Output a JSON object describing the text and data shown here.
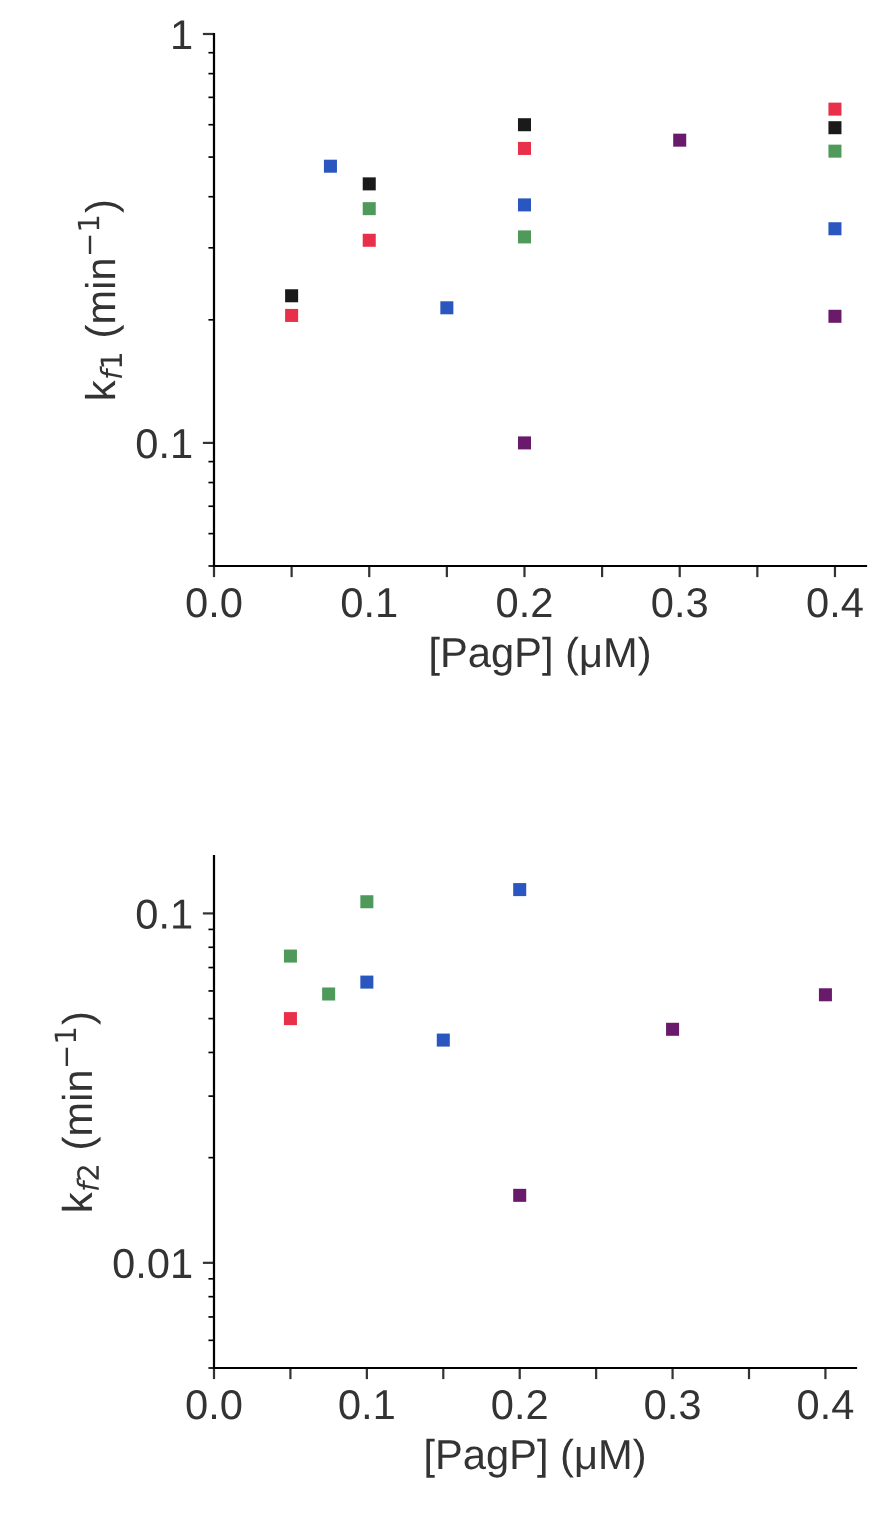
{
  "chart_data": [
    {
      "type": "scatter",
      "xlabel": "[PagP] (μM)",
      "ylabel": "k$_{f1}$ (min$^{−1}$)",
      "log": "y",
      "marker": "square",
      "xlim": [
        0,
        0.42
      ],
      "ylim": [
        0.05,
        1
      ],
      "xticks": [
        {
          "value": 0.0,
          "label": "0.0"
        },
        {
          "value": 0.05,
          "label": null
        },
        0.1,
        {
          "value": 0.15,
          "label": null
        },
        0.2,
        {
          "value": 0.25,
          "label": null
        },
        0.3,
        {
          "value": 0.35,
          "label": null
        },
        0.4
      ],
      "yticks": [
        0.1,
        1
      ],
      "series": [
        {
          "color": "#1a1a1a",
          "x": [
            0.05,
            0.1,
            0.2,
            0.4
          ],
          "values": [
            0.229,
            0.43,
            0.6,
            0.59
          ]
        },
        {
          "color": "#e8304a",
          "x": [
            0.05,
            0.1,
            0.2,
            0.4
          ],
          "values": [
            0.205,
            0.313,
            0.525,
            0.655
          ]
        },
        {
          "color": "#4f9a5a",
          "x": [
            0.1,
            0.2,
            0.4
          ],
          "values": [
            0.374,
            0.319,
            0.517
          ]
        },
        {
          "color": "#2a56c0",
          "x": [
            0.075,
            0.15,
            0.2,
            0.4
          ],
          "values": [
            0.475,
            0.214,
            0.382,
            0.334
          ]
        },
        {
          "color": "#6a1a6a",
          "x": [
            0.2,
            0.3,
            0.4
          ],
          "values": [
            0.1,
            0.55,
            0.204
          ]
        }
      ]
    },
    {
      "type": "scatter",
      "xlabel": "[PagP] (μM)",
      "ylabel": "k$_{f2}$ (min$^{−1}$)",
      "log": "y",
      "marker": "square",
      "xlim": [
        0,
        0.42
      ],
      "ylim": [
        0.005,
        0.146
      ],
      "xticks": [
        {
          "value": 0.0,
          "label": "0.0"
        },
        {
          "value": 0.05,
          "label": null
        },
        0.1,
        {
          "value": 0.15,
          "label": null
        },
        0.2,
        {
          "value": 0.25,
          "label": null
        },
        0.3,
        {
          "value": 0.35,
          "label": null
        },
        0.4
      ],
      "yticks": [
        0.01,
        0.1
      ],
      "series": [
        {
          "color": "#4f9a5a",
          "x": [
            0.05,
            0.075,
            0.1
          ],
          "values": [
            0.0755,
            0.0588,
            0.108
          ]
        },
        {
          "color": "#e8304a",
          "x": [
            0.05
          ],
          "values": [
            0.05
          ]
        },
        {
          "color": "#2a56c0",
          "x": [
            0.1,
            0.15,
            0.2
          ],
          "values": [
            0.0636,
            0.0434,
            0.117
          ]
        },
        {
          "color": "#6a1a6a",
          "x": [
            0.2,
            0.3,
            0.4
          ],
          "values": [
            0.0156,
            0.0466,
            0.0585
          ]
        }
      ]
    }
  ]
}
